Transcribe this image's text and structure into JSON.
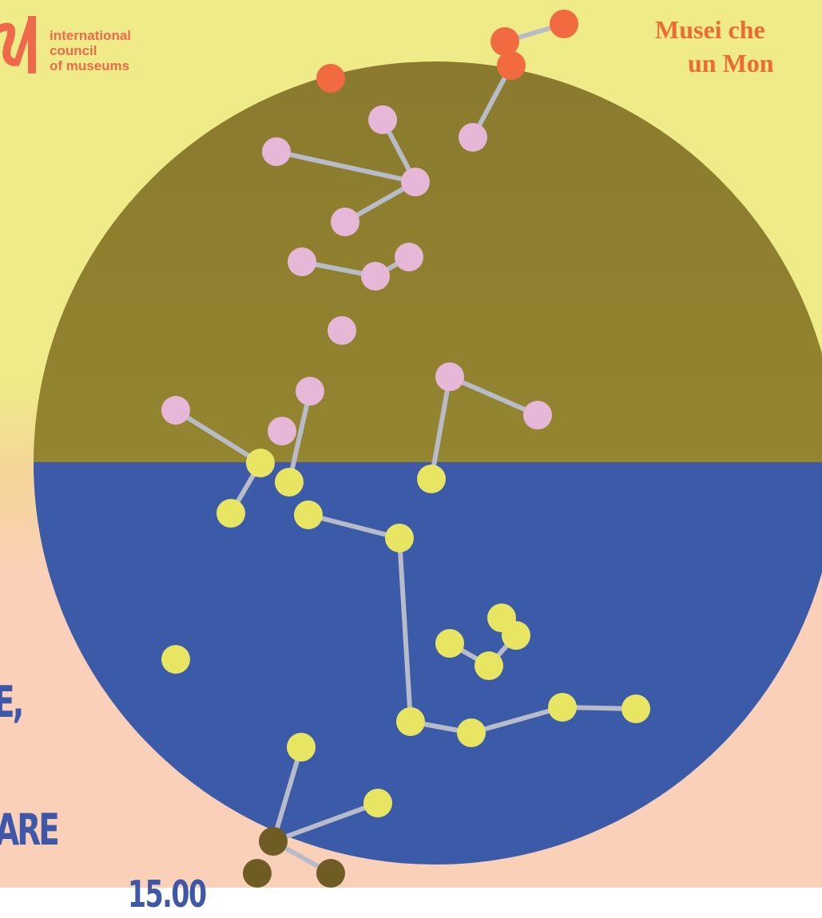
{
  "logo": {
    "lines": [
      "international",
      "council",
      "of museums"
    ]
  },
  "title": {
    "line1": "Musei che",
    "line2": "un Mon"
  },
  "side_text": {
    "line1": "E,",
    "line2": "ARE",
    "line3": "15.00"
  },
  "colors": {
    "background_top": "#eeeb88",
    "background_bottom": "#fbd0b8",
    "circle_top": "#8a7a2e",
    "circle_bottom": "#3b5aa8",
    "node_pink": "#e6b7d6",
    "node_yellow": "#e8e562",
    "node_orange": "#f26a3f",
    "node_olive": "#6e5c24",
    "edge": "#b8bcc8",
    "text_orange": "#ee6a34",
    "text_blue": "#3f57a8"
  }
}
